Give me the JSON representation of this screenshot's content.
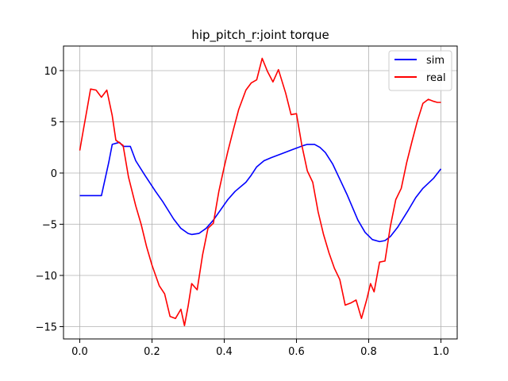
{
  "chart_data": {
    "type": "line",
    "title": "hip_pitch_r:joint torque",
    "xlabel": "",
    "ylabel": "",
    "xlim": [
      -0.045,
      1.045
    ],
    "ylim": [
      -16.2,
      12.4
    ],
    "xticks": [
      0.0,
      0.2,
      0.4,
      0.6,
      0.8,
      1.0
    ],
    "xtick_labels": [
      "0.0",
      "0.2",
      "0.4",
      "0.6",
      "0.8",
      "1.0"
    ],
    "yticks": [
      -15,
      -10,
      -5,
      0,
      5,
      10
    ],
    "ytick_labels": [
      "−15",
      "−10",
      "−5",
      "0",
      "5",
      "10"
    ],
    "grid": true,
    "legend_position": "top-right",
    "series": [
      {
        "name": "sim",
        "color": "#0000ff",
        "x": [
          0.0,
          0.03,
          0.06,
          0.08,
          0.09,
          0.11,
          0.12,
          0.14,
          0.155,
          0.18,
          0.21,
          0.23,
          0.26,
          0.28,
          0.3,
          0.31,
          0.33,
          0.35,
          0.37,
          0.39,
          0.41,
          0.43,
          0.46,
          0.475,
          0.49,
          0.51,
          0.53,
          0.56,
          0.59,
          0.62,
          0.63,
          0.65,
          0.665,
          0.68,
          0.7,
          0.72,
          0.74,
          0.77,
          0.79,
          0.81,
          0.83,
          0.845,
          0.86,
          0.88,
          0.91,
          0.93,
          0.95,
          0.98,
          1.0
        ],
        "y": [
          -2.2,
          -2.2,
          -2.2,
          1.0,
          2.8,
          3.0,
          2.6,
          2.6,
          1.2,
          -0.2,
          -1.8,
          -2.8,
          -4.5,
          -5.4,
          -5.9,
          -6.0,
          -5.9,
          -5.4,
          -4.6,
          -3.6,
          -2.6,
          -1.8,
          -0.9,
          -0.2,
          0.6,
          1.2,
          1.5,
          1.9,
          2.3,
          2.7,
          2.8,
          2.8,
          2.5,
          2.0,
          0.9,
          -0.6,
          -2.1,
          -4.6,
          -5.8,
          -6.5,
          -6.7,
          -6.6,
          -6.2,
          -5.3,
          -3.6,
          -2.4,
          -1.5,
          -0.5,
          0.4
        ]
      },
      {
        "name": "real",
        "color": "#ff0000",
        "x": [
          0.0,
          0.01,
          0.02,
          0.03,
          0.045,
          0.06,
          0.075,
          0.09,
          0.1,
          0.12,
          0.135,
          0.155,
          0.17,
          0.185,
          0.2,
          0.22,
          0.235,
          0.25,
          0.265,
          0.28,
          0.29,
          0.3,
          0.31,
          0.325,
          0.34,
          0.355,
          0.37,
          0.385,
          0.4,
          0.41,
          0.425,
          0.44,
          0.46,
          0.475,
          0.49,
          0.505,
          0.52,
          0.535,
          0.55,
          0.57,
          0.585,
          0.6,
          0.615,
          0.63,
          0.645,
          0.66,
          0.675,
          0.69,
          0.705,
          0.72,
          0.735,
          0.75,
          0.765,
          0.78,
          0.795,
          0.805,
          0.815,
          0.83,
          0.845,
          0.86,
          0.875,
          0.89,
          0.905,
          0.92,
          0.935,
          0.95,
          0.965,
          0.98,
          0.99,
          1.0
        ],
        "y": [
          2.2,
          4.2,
          6.2,
          8.2,
          8.1,
          7.4,
          8.1,
          5.6,
          3.2,
          2.7,
          -0.4,
          -3.2,
          -5.0,
          -7.2,
          -9.0,
          -11.0,
          -11.8,
          -14.0,
          -14.2,
          -13.3,
          -14.9,
          -13.0,
          -10.8,
          -11.4,
          -8.0,
          -5.4,
          -4.9,
          -1.8,
          0.6,
          2.1,
          4.2,
          6.2,
          8.1,
          8.8,
          9.1,
          11.2,
          9.9,
          8.9,
          10.1,
          7.8,
          5.7,
          5.8,
          2.7,
          0.2,
          -0.9,
          -3.8,
          -6.0,
          -7.8,
          -9.3,
          -10.4,
          -12.9,
          -12.7,
          -12.4,
          -14.2,
          -12.3,
          -10.8,
          -11.6,
          -8.7,
          -8.6,
          -5.2,
          -2.6,
          -1.5,
          1.0,
          3.1,
          5.1,
          6.8,
          7.2,
          7.0,
          6.9,
          6.9
        ]
      }
    ]
  }
}
